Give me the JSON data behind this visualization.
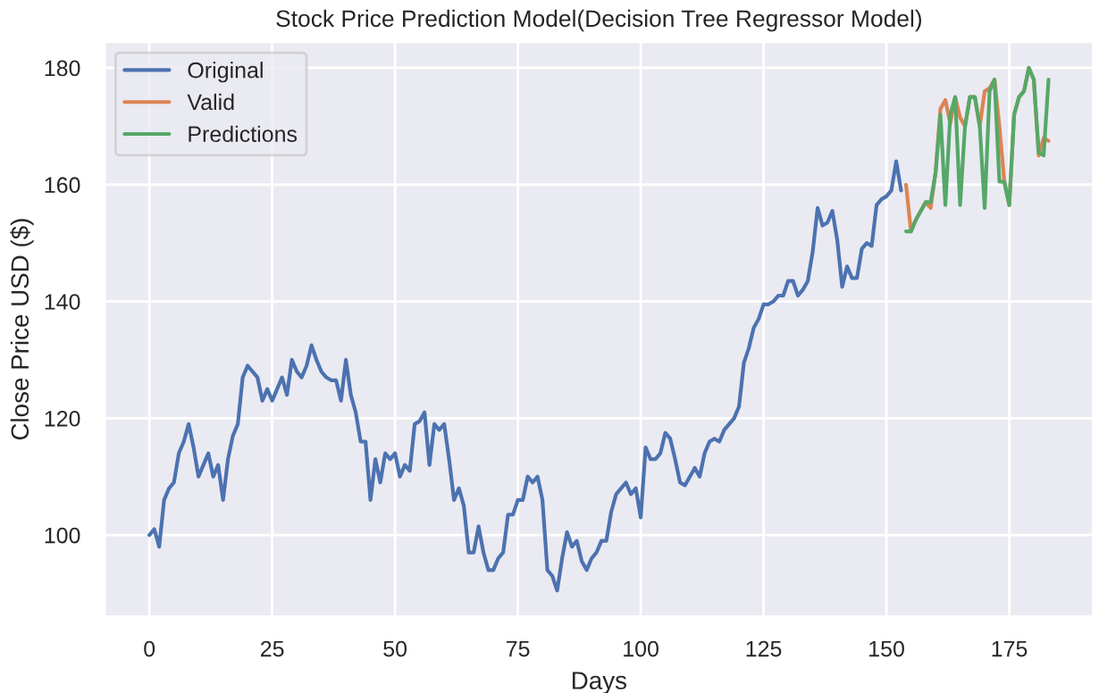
{
  "chart_data": {
    "type": "line",
    "title": "Stock Price Prediction Model(Decision Tree Regressor Model)",
    "xlabel": "Days",
    "ylabel": "Close Price USD ($)",
    "xlim": [
      -9.15,
      192.15
    ],
    "ylim": [
      86,
      184.5
    ],
    "xticks": [
      0,
      25,
      50,
      75,
      100,
      125,
      150,
      175
    ],
    "yticks": [
      100,
      120,
      140,
      160,
      180
    ],
    "grid": true,
    "legend": "top left",
    "series": [
      {
        "name": "Original",
        "color": "#4c72b0",
        "x": [
          0,
          1,
          2,
          3,
          4,
          5,
          6,
          7,
          8,
          9,
          10,
          11,
          12,
          13,
          14,
          15,
          16,
          17,
          18,
          19,
          20,
          21,
          22,
          23,
          24,
          25,
          26,
          27,
          28,
          29,
          30,
          31,
          32,
          33,
          34,
          35,
          36,
          37,
          38,
          39,
          40,
          41,
          42,
          43,
          44,
          45,
          46,
          47,
          48,
          49,
          50,
          51,
          52,
          53,
          54,
          55,
          56,
          57,
          58,
          59,
          60,
          61,
          62,
          63,
          64,
          65,
          66,
          67,
          68,
          69,
          70,
          71,
          72,
          73,
          74,
          75,
          76,
          77,
          78,
          79,
          80,
          81,
          82,
          83,
          84,
          85,
          86,
          87,
          88,
          89,
          90,
          91,
          92,
          93,
          94,
          95,
          96,
          97,
          98,
          99,
          100,
          101,
          102,
          103,
          104,
          105,
          106,
          107,
          108,
          109,
          110,
          111,
          112,
          113,
          114,
          115,
          116,
          117,
          118,
          119,
          120,
          121,
          122,
          123,
          124,
          125,
          126,
          127,
          128,
          129,
          130,
          131,
          132,
          133,
          134,
          135,
          136,
          137,
          138,
          139,
          140,
          141,
          142,
          143,
          144,
          145,
          146,
          147,
          148,
          149,
          150,
          151,
          152,
          153
        ],
        "values": [
          100,
          101,
          98,
          106,
          108,
          109,
          114,
          116,
          119,
          115,
          110,
          112,
          114,
          110,
          112,
          106,
          113,
          117,
          119,
          127,
          129,
          128,
          127,
          123,
          125,
          123,
          125,
          127,
          124,
          130,
          128,
          127,
          129,
          132.5,
          130,
          128,
          127,
          126.5,
          126.5,
          123,
          130,
          124,
          121,
          116,
          116,
          106,
          113,
          109,
          114,
          113,
          114,
          110,
          112,
          111,
          119,
          119.5,
          121,
          112,
          119,
          118,
          119,
          113,
          106,
          108,
          105,
          97,
          97,
          101.5,
          97,
          94,
          94,
          96,
          97,
          103.5,
          103.5,
          106,
          106,
          110,
          109,
          110,
          106,
          94,
          93,
          90.5,
          96,
          100.5,
          98,
          99,
          95.5,
          94,
          96,
          97,
          99,
          99,
          104,
          107,
          108,
          109,
          107,
          108,
          103,
          115,
          113,
          113,
          114,
          117.5,
          116.5,
          113,
          109,
          108.5,
          110,
          111.5,
          110,
          114,
          116,
          116.5,
          116,
          118,
          119,
          120,
          122,
          129.5,
          132,
          135.5,
          137,
          139.5,
          139.5,
          140,
          141,
          141,
          143.5,
          143.5,
          141,
          142,
          143.5,
          148.5,
          156,
          153,
          153.5,
          155.5,
          150.5,
          142.5,
          146,
          144,
          144,
          149,
          150,
          149.5,
          156.5,
          157.5,
          158,
          159,
          164,
          159
        ]
      },
      {
        "name": "Valid",
        "color": "#dd8452",
        "x": [
          154,
          155,
          156,
          157,
          158,
          159,
          160,
          161,
          162,
          163,
          164,
          165,
          166,
          167,
          168,
          169,
          170,
          171,
          172,
          173,
          174,
          175,
          176,
          177,
          178,
          179,
          180,
          181,
          182,
          183
        ],
        "values": [
          160,
          152,
          154,
          155.5,
          157,
          156,
          162,
          173,
          174.5,
          170.5,
          175,
          171.5,
          170,
          175,
          175,
          170,
          176,
          176.5,
          178,
          170,
          160.5,
          156.5,
          172,
          175,
          176,
          180,
          178,
          165,
          168,
          167.5
        ]
      },
      {
        "name": "Predictions",
        "color": "#55a868",
        "x": [
          154,
          155,
          156,
          157,
          158,
          159,
          160,
          161,
          162,
          163,
          164,
          165,
          166,
          167,
          168,
          169,
          170,
          171,
          172,
          173,
          174,
          175,
          176,
          177,
          178,
          179,
          180,
          181,
          182,
          183
        ],
        "values": [
          152,
          152,
          154,
          155.5,
          157,
          157,
          162,
          172,
          156.5,
          172,
          175,
          156.5,
          170,
          175,
          175,
          170,
          156,
          176,
          178,
          160.5,
          160.5,
          156.5,
          172,
          175,
          176,
          180,
          178,
          165.5,
          165,
          178
        ]
      }
    ]
  }
}
